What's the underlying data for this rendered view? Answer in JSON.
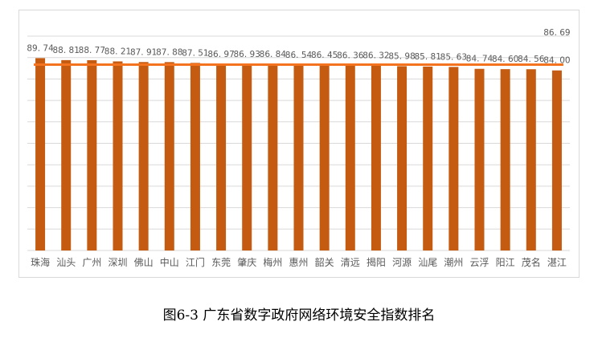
{
  "chart_data": {
    "type": "bar",
    "categories": [
      "珠海",
      "汕头",
      "广州",
      "深圳",
      "佛山",
      "中山",
      "江门",
      "东莞",
      "肇庆",
      "梅州",
      "惠州",
      "韶关",
      "清远",
      "揭阳",
      "河源",
      "汕尾",
      "潮州",
      "云浮",
      "阳江",
      "茂名",
      "湛江"
    ],
    "values": [
      89.74,
      88.81,
      88.77,
      88.21,
      87.91,
      87.88,
      87.51,
      86.97,
      86.93,
      86.84,
      86.54,
      86.45,
      86.36,
      86.32,
      85.98,
      85.81,
      85.63,
      84.74,
      84.6,
      84.56,
      84.0
    ],
    "data_labels": [
      "89. 74",
      "88. 81",
      "88. 77",
      "88. 21",
      "87. 91",
      "87. 88",
      "87. 51",
      "86. 97",
      "86. 93",
      "86. 84",
      "86. 54",
      "86. 45",
      "86. 36",
      "86. 32",
      "85. 98",
      "85. 81",
      "85. 63",
      "84. 74",
      "84. 60",
      "84. 56",
      "84. 00"
    ],
    "average": {
      "value": 86.69,
      "label": "86. 69"
    },
    "ylim": [
      0,
      100
    ],
    "grid": true,
    "bar_color": "#c55a11",
    "average_line_color": "#f4731f",
    "gridline_color": "#d9d9d9",
    "label_color": "#595959"
  },
  "caption": "图6-3  广东省数字政府网络环境安全指数排名"
}
